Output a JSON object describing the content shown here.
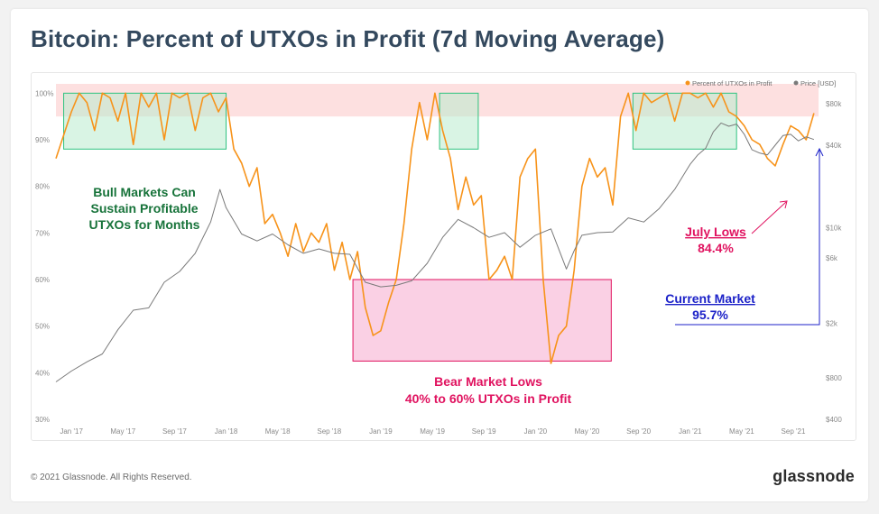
{
  "page": {
    "title": "Bitcoin: Percent of UTXOs in Profit (7d Moving Average)",
    "footer": "© 2021 Glassnode. All Rights Reserved.",
    "logo": "glassnode"
  },
  "chart_data": {
    "type": "line",
    "x_ticks": [
      "Jan '17",
      "May '17",
      "Sep '17",
      "Jan '18",
      "May '18",
      "Sep '18",
      "Jan '19",
      "May '19",
      "Sep '19",
      "Jan '20",
      "May '20",
      "Sep '20",
      "Jan '21",
      "May '21",
      "Sep '21"
    ],
    "y_left_ticks": [
      "30%",
      "40%",
      "50%",
      "60%",
      "70%",
      "80%",
      "90%",
      "100%"
    ],
    "y_left_range": [
      30,
      102
    ],
    "y_right_ticks": [
      "$400",
      "$800",
      "$2k",
      "$6k",
      "$10k",
      "$40k",
      "$80k"
    ],
    "y_right_values": [
      400,
      800,
      2000,
      6000,
      10000,
      40000,
      80000
    ],
    "y_right_scale": "log",
    "legend_position": "top-right",
    "legend": [
      {
        "name": "Percent of UTXOs in Profit",
        "color": "#f7931a"
      },
      {
        "name": "Price [USD]",
        "color": "#7a7a7a"
      }
    ],
    "series": [
      {
        "name": "Percent of UTXOs in Profit",
        "color": "#f7931a",
        "axis": "left",
        "x": [
          2016.9,
          2017.0,
          2017.05,
          2017.1,
          2017.15,
          2017.2,
          2017.25,
          2017.3,
          2017.35,
          2017.4,
          2017.45,
          2017.5,
          2017.55,
          2017.6,
          2017.65,
          2017.7,
          2017.75,
          2017.8,
          2017.85,
          2017.9,
          2017.95,
          2018.0,
          2018.05,
          2018.1,
          2018.15,
          2018.2,
          2018.25,
          2018.3,
          2018.35,
          2018.4,
          2018.45,
          2018.5,
          2018.55,
          2018.6,
          2018.65,
          2018.7,
          2018.75,
          2018.8,
          2018.85,
          2018.9,
          2018.95,
          2019.0,
          2019.05,
          2019.1,
          2019.15,
          2019.2,
          2019.25,
          2019.3,
          2019.35,
          2019.4,
          2019.45,
          2019.5,
          2019.55,
          2019.6,
          2019.65,
          2019.7,
          2019.75,
          2019.8,
          2019.85,
          2019.9,
          2019.95,
          2020.0,
          2020.05,
          2020.1,
          2020.15,
          2020.2,
          2020.25,
          2020.3,
          2020.35,
          2020.4,
          2020.45,
          2020.5,
          2020.55,
          2020.6,
          2020.65,
          2020.7,
          2020.75,
          2020.8,
          2020.85,
          2020.9,
          2020.95,
          2021.0,
          2021.05,
          2021.1,
          2021.15,
          2021.2,
          2021.25,
          2021.3,
          2021.35,
          2021.4,
          2021.45,
          2021.5,
          2021.55,
          2021.6,
          2021.65,
          2021.7,
          2021.75,
          2021.8
        ],
        "values": [
          86,
          96,
          100,
          98,
          92,
          100,
          99,
          94,
          100,
          89,
          100,
          97,
          100,
          90,
          100,
          99,
          100,
          92,
          99,
          100,
          96,
          99,
          88,
          85,
          80,
          84,
          72,
          74,
          70,
          65,
          72,
          66,
          70,
          68,
          72,
          62,
          68,
          60,
          66,
          54,
          48,
          49,
          55,
          60,
          72,
          88,
          98,
          90,
          100,
          92,
          86,
          75,
          82,
          76,
          78,
          60,
          62,
          65,
          60,
          82,
          86,
          88,
          60,
          42,
          48,
          50,
          62,
          80,
          86,
          82,
          84,
          76,
          95,
          100,
          92,
          100,
          98,
          99,
          100,
          94,
          100,
          100,
          99,
          100,
          97,
          100,
          96,
          95,
          93,
          90,
          89,
          86,
          84.4,
          89,
          93,
          92,
          90,
          95.7
        ]
      },
      {
        "name": "Price [USD]",
        "color": "#7a7a7a",
        "axis": "right",
        "x": [
          2016.9,
          2017.0,
          2017.1,
          2017.2,
          2017.3,
          2017.4,
          2017.5,
          2017.6,
          2017.7,
          2017.8,
          2017.9,
          2017.96,
          2018.0,
          2018.1,
          2018.2,
          2018.3,
          2018.4,
          2018.5,
          2018.6,
          2018.7,
          2018.8,
          2018.9,
          2019.0,
          2019.1,
          2019.2,
          2019.3,
          2019.4,
          2019.5,
          2019.6,
          2019.7,
          2019.8,
          2019.9,
          2020.0,
          2020.1,
          2020.2,
          2020.25,
          2020.3,
          2020.4,
          2020.5,
          2020.6,
          2020.7,
          2020.8,
          2020.9,
          2021.0,
          2021.05,
          2021.1,
          2021.15,
          2021.2,
          2021.25,
          2021.3,
          2021.35,
          2021.4,
          2021.45,
          2021.5,
          2021.55,
          2021.6,
          2021.65,
          2021.7,
          2021.75,
          2021.8
        ],
        "values": [
          750,
          900,
          1050,
          1200,
          1800,
          2500,
          2600,
          4000,
          4800,
          6500,
          11000,
          19000,
          14000,
          9000,
          8000,
          9000,
          7500,
          6500,
          7000,
          6500,
          6400,
          4000,
          3700,
          3800,
          4100,
          5500,
          8500,
          11500,
          10000,
          8500,
          9200,
          7200,
          8800,
          9800,
          5000,
          6800,
          8800,
          9200,
          9300,
          11800,
          11000,
          13800,
          19000,
          29000,
          34000,
          38000,
          50000,
          58000,
          55000,
          57000,
          48000,
          37000,
          35000,
          34000,
          40000,
          47000,
          48000,
          43000,
          46000,
          44000
        ]
      }
    ],
    "annotations": {
      "bull": {
        "line1": "Bull Markets Can",
        "line2": "Sustain Profitable",
        "line3": "UTXOs for Months",
        "color": "#17733a"
      },
      "bear": {
        "line1": "Bear Market Lows",
        "line2": "40% to 60% UTXOs in Profit",
        "color": "#e0125f"
      },
      "july": {
        "line1": "July Lows",
        "line2": "84.4%",
        "color": "#e0125f"
      },
      "current": {
        "line1": "Current Market",
        "line2": "95.7%",
        "color": "#1c22c8"
      }
    },
    "colors": {
      "profit": "#f7931a",
      "price": "#7a7a7a",
      "high_zone": "#fde0e0",
      "green_box": "#b9ebcd",
      "green_box_border": "#2ec27e",
      "bear_box": "#f9c4dd",
      "bear_box_border": "#e0125f",
      "axis_text": "#8a8a8a"
    }
  }
}
